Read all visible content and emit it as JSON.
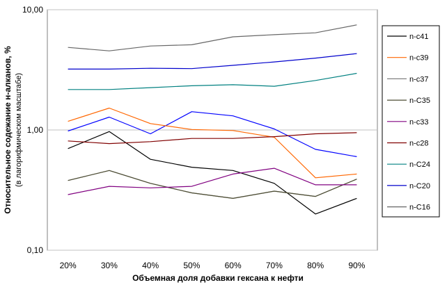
{
  "chart_data": {
    "type": "line",
    "title": "",
    "ylabel": "Относительное содежание н-алканов, %",
    "ylabel_sub": "(в лагорифмическом масштабе)",
    "xlabel": "Объемная доля добавки гексана к нефти",
    "yscale": "log",
    "ylim": [
      0.1,
      10
    ],
    "ytick_values": [
      0.1,
      1,
      10
    ],
    "ytick_labels": [
      "0,10",
      "1,00",
      "10,00"
    ],
    "categories": [
      "20%",
      "30%",
      "40%",
      "50%",
      "60%",
      "70%",
      "80%",
      "90%"
    ],
    "grid": "horizontal",
    "legend_position": "right",
    "series": [
      {
        "name": "n-c41",
        "color": "#000000",
        "values": [
          0.7,
          0.97,
          0.57,
          0.49,
          0.46,
          0.36,
          0.2,
          0.27
        ]
      },
      {
        "name": "n-c39",
        "color": "#ff6600",
        "values": [
          1.18,
          1.52,
          1.13,
          1.01,
          0.99,
          0.87,
          0.4,
          0.43
        ]
      },
      {
        "name": "n-c37",
        "color": "#808080",
        "values": [
          0.38,
          0.46,
          0.36,
          0.3,
          0.27,
          0.31,
          0.28,
          0.39
        ]
      },
      {
        "name": "n-C35",
        "color": "#4d4d33",
        "values": [
          0.38,
          0.46,
          0.36,
          0.3,
          0.27,
          0.31,
          0.28,
          0.39
        ]
      },
      {
        "name": "n-c33",
        "color": "#800080",
        "values": [
          0.29,
          0.34,
          0.33,
          0.34,
          0.43,
          0.48,
          0.35,
          0.35
        ]
      },
      {
        "name": "n-c28",
        "color": "#800000",
        "values": [
          0.81,
          0.77,
          0.8,
          0.85,
          0.85,
          0.88,
          0.93,
          0.95
        ]
      },
      {
        "name": "n-C24",
        "color": "#008080",
        "values": [
          2.17,
          2.17,
          2.25,
          2.33,
          2.38,
          2.31,
          2.58,
          2.96
        ]
      },
      {
        "name": "n-C20",
        "color": "#0000cc",
        "values": [
          3.21,
          3.21,
          3.26,
          3.24,
          3.45,
          3.68,
          3.96,
          4.32
        ]
      },
      {
        "name": "n-C16",
        "color": "#666666",
        "values": [
          4.86,
          4.55,
          4.99,
          5.11,
          5.95,
          6.2,
          6.43,
          7.48
        ]
      }
    ],
    "extra_lines": [
      {
        "color": "#0000ff",
        "values": [
          0.98,
          1.28,
          0.93,
          1.42,
          1.31,
          1.02,
          0.69,
          0.6
        ]
      }
    ]
  }
}
